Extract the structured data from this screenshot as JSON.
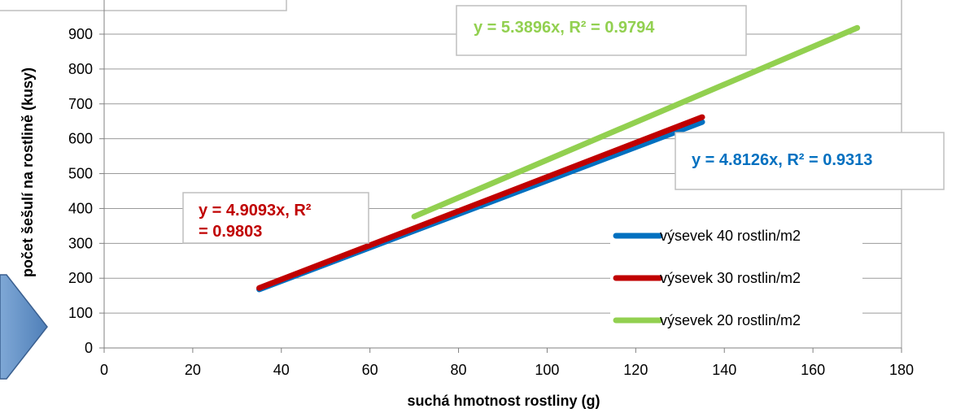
{
  "colors": {
    "series_blue": "#0070C0",
    "series_red": "#C00000",
    "series_green": "#92D050",
    "gridline": "#9a9a9a",
    "axis": "#808080",
    "box_border": "#bfbfbf",
    "arrow_fill_top": "#7fa8d6",
    "arrow_fill_bottom": "#4f7fb8",
    "arrow_stroke": "#3a5f8f"
  },
  "chart_data": {
    "type": "line",
    "title": "",
    "xlabel": "suchá hmotnost rostliny (g)",
    "ylabel": "počet šešulí na rostlině (kusy)",
    "xlim": [
      0,
      180
    ],
    "ylim": [
      0,
      900
    ],
    "x_ticks": [
      "0",
      "20",
      "40",
      "60",
      "80",
      "100",
      "120",
      "140",
      "160",
      "180"
    ],
    "y_ticks": [
      "0",
      "100",
      "200",
      "300",
      "400",
      "500",
      "600",
      "700",
      "800",
      "900"
    ],
    "grid": true,
    "legend_position": "right",
    "series": [
      {
        "name": "výsevek 40 rostlin/m2",
        "color": "#0070C0",
        "x": [
          35,
          135
        ],
        "y": [
          168,
          648
        ]
      },
      {
        "name": "výsevek 30 rostlin/m2",
        "color": "#C00000",
        "x": [
          35,
          135
        ],
        "y": [
          172,
          662
        ]
      },
      {
        "name": "výsevek 20 rostlin/m2",
        "color": "#92D050",
        "x": [
          70,
          170
        ],
        "y": [
          377,
          918
        ]
      }
    ],
    "annotations": [
      {
        "series": "výsevek 20 rostlin/m2",
        "lines": [
          "y = 5.3896x, R² = 0.9794"
        ],
        "color": "#92D050"
      },
      {
        "series": "výsevek 40 rostlin/m2",
        "lines": [
          "y = 4.8126x, R² = 0.9313"
        ],
        "color": "#0070C0"
      },
      {
        "series": "výsevek 30 rostlin/m2",
        "lines": [
          "y = 4.9093x, R²",
          "= 0.9803"
        ],
        "color": "#C00000"
      }
    ]
  }
}
